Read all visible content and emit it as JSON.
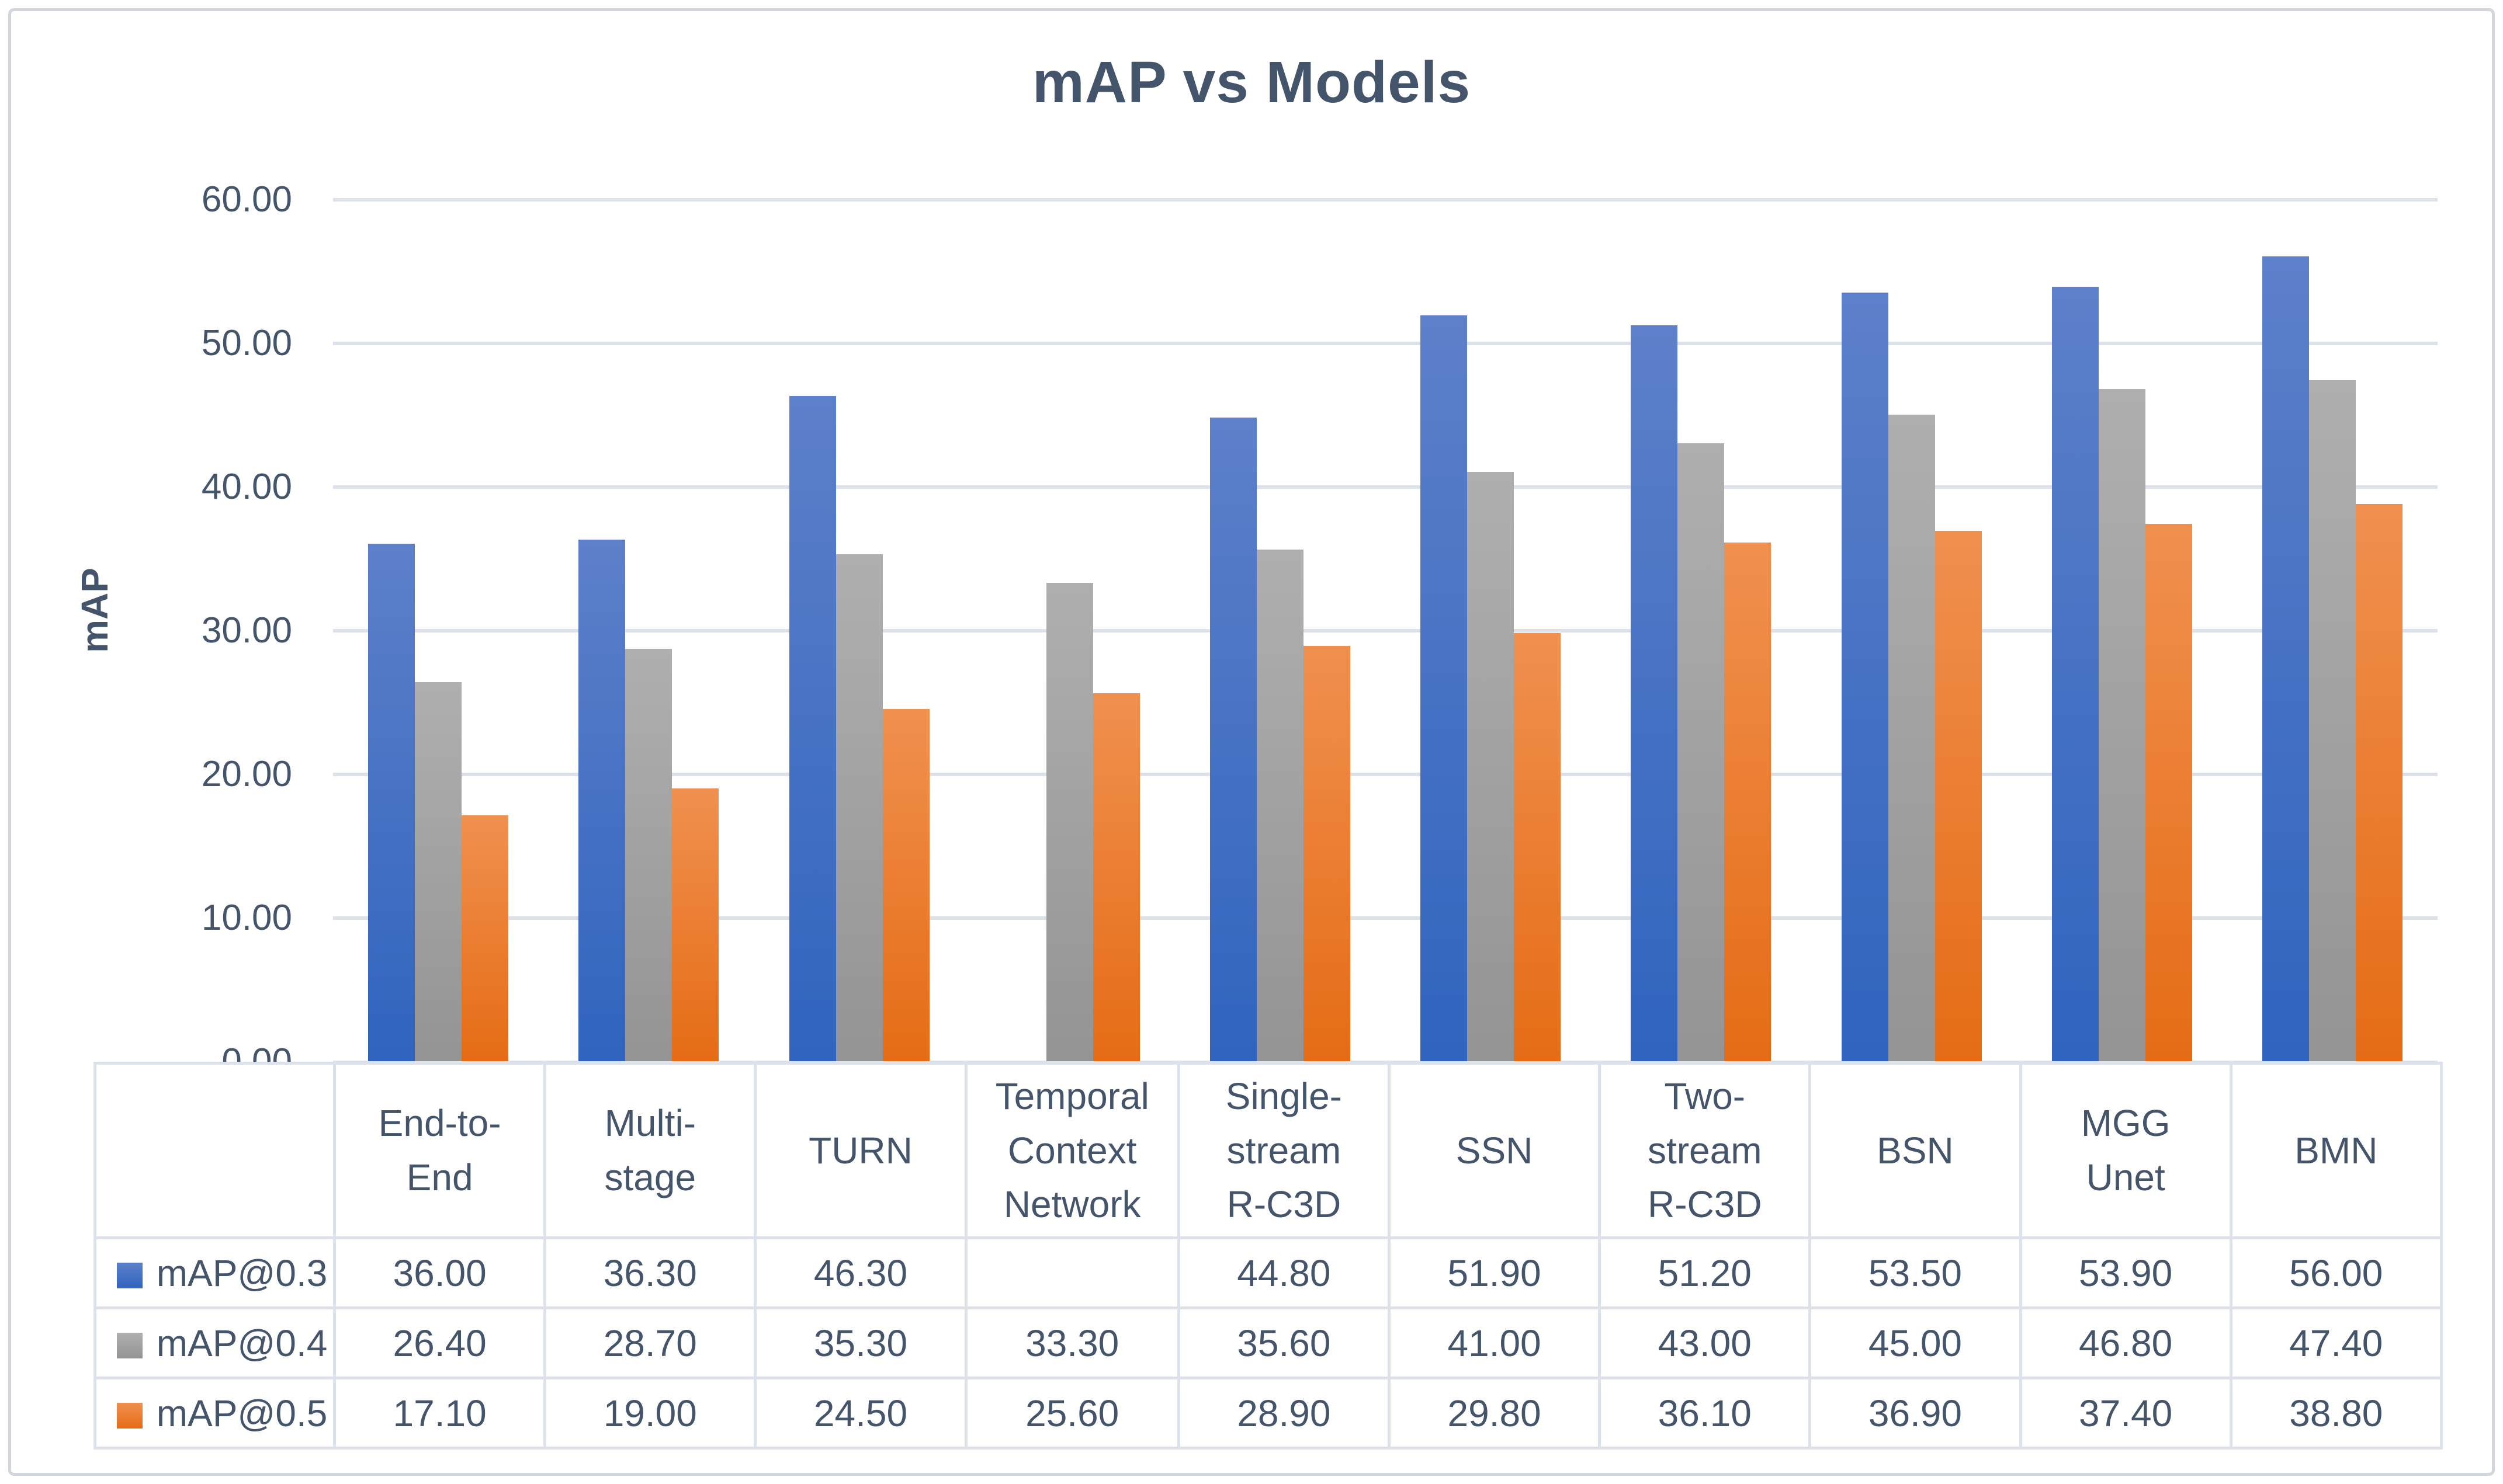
{
  "chart_data": {
    "type": "bar",
    "title": "mAP vs Models",
    "xlabel": "",
    "ylabel": "mAP",
    "ylim": [
      0,
      60
    ],
    "grid": true,
    "legend_position": "table-left",
    "y_tick_labels": [
      "0.00",
      "10.00",
      "20.00",
      "30.00",
      "40.00",
      "50.00",
      "60.00"
    ],
    "categories": [
      "End-to-End",
      "Multi-stage",
      "TURN",
      "Temporal Context Network",
      "Single-stream R-C3D",
      "SSN",
      "Two-stream R-C3D",
      "BSN",
      "MGG Unet",
      "BMN"
    ],
    "series": [
      {
        "name": "mAP@0.3",
        "color": "#4472C4",
        "gradient": [
          "#5D80CA",
          "#3064BE"
        ],
        "values": [
          36.0,
          36.3,
          46.3,
          null,
          44.8,
          51.9,
          51.2,
          53.5,
          53.9,
          56.0
        ],
        "display_values": [
          "36.00",
          "36.30",
          "46.30",
          "",
          "44.80",
          "51.90",
          "51.20",
          "53.50",
          "53.90",
          "56.00"
        ]
      },
      {
        "name": "mAP@0.4",
        "color": "#A5A5A5",
        "gradient": [
          "#AFAFAF",
          "#949494"
        ],
        "values": [
          26.4,
          28.7,
          35.3,
          33.3,
          35.6,
          41.0,
          43.0,
          45.0,
          46.8,
          47.4
        ],
        "display_values": [
          "26.40",
          "28.70",
          "35.30",
          "33.30",
          "35.60",
          "41.00",
          "43.00",
          "45.00",
          "46.80",
          "47.40"
        ]
      },
      {
        "name": "mAP@0.5",
        "color": "#ED7D31",
        "gradient": [
          "#F0904F",
          "#E56C15"
        ],
        "values": [
          17.1,
          19.0,
          24.5,
          25.6,
          28.9,
          29.8,
          36.1,
          36.9,
          37.4,
          38.8
        ],
        "display_values": [
          "17.10",
          "19.00",
          "24.50",
          "25.60",
          "28.90",
          "29.80",
          "36.10",
          "36.90",
          "37.40",
          "38.80"
        ]
      }
    ],
    "text_color": "#44546A",
    "gridline_color": "#DCE1EA",
    "frame_border_color": "#D3D7DD"
  }
}
